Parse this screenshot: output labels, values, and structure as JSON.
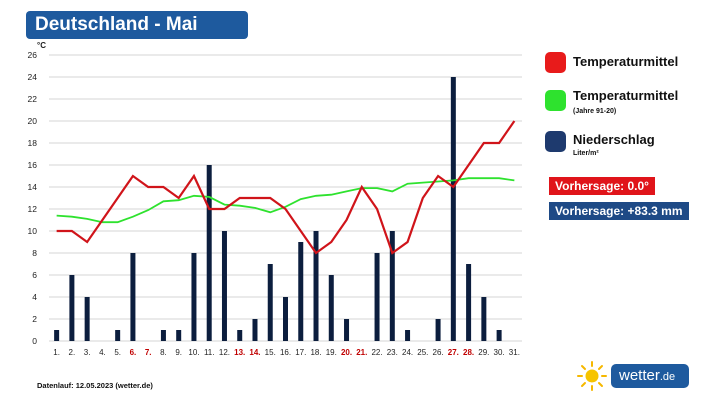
{
  "title": "Deutschland - Mai",
  "chart_data": {
    "type": "bar+line",
    "yunit": "°C",
    "ylim": [
      0,
      26
    ],
    "yticks": [
      0,
      2,
      4,
      6,
      8,
      10,
      12,
      14,
      16,
      18,
      20,
      22,
      24,
      26
    ],
    "categories": [
      "1.",
      "2.",
      "3.",
      "4.",
      "5.",
      "6.",
      "7.",
      "8.",
      "9.",
      "10.",
      "11.",
      "12.",
      "13.",
      "14.",
      "15.",
      "16.",
      "17.",
      "18.",
      "19.",
      "20.",
      "21.",
      "22.",
      "23.",
      "24.",
      "25.",
      "26.",
      "27.",
      "28.",
      "29.",
      "30.",
      "31."
    ],
    "weekend_days": [
      "6.",
      "7.",
      "13.",
      "14.",
      "20.",
      "21.",
      "27.",
      "28."
    ],
    "precipitation": [
      1,
      6,
      4,
      0,
      1,
      8,
      0,
      1,
      1,
      8,
      16,
      10,
      1,
      2,
      7,
      4,
      9,
      10,
      6,
      2,
      0,
      8,
      10,
      1,
      0,
      2,
      24,
      7,
      4,
      1,
      0
    ],
    "temperature": [
      10,
      10,
      9,
      11,
      13,
      15,
      14,
      14,
      13,
      15,
      12,
      12,
      13,
      13,
      13,
      12,
      10,
      8,
      9,
      11,
      14,
      12,
      8,
      9,
      13,
      15,
      14,
      16,
      18,
      18,
      20
    ],
    "temperature_mean_9120": [
      11.4,
      11.3,
      11.1,
      10.8,
      10.8,
      11.3,
      11.9,
      12.7,
      12.8,
      13.2,
      13.1,
      12.4,
      12.3,
      12.1,
      11.7,
      12.2,
      12.9,
      13.2,
      13.3,
      13.6,
      13.9,
      13.9,
      13.6,
      14.3,
      14.4,
      14.5,
      14.6,
      14.8,
      14.8,
      14.8,
      14.6
    ],
    "colors": {
      "temperature": "#d0141a",
      "temperature_mean": "#2ee22e",
      "precipitation": "#0c1e3e",
      "weekend_label": "#c00000",
      "grid": "#c8c8c8"
    }
  },
  "legend": [
    {
      "label": "Temperaturmittel",
      "sub": "",
      "color": "#e81b1b"
    },
    {
      "label": "Temperaturmittel",
      "sub": "(Jahre 91-20)",
      "color": "#2ee22e"
    },
    {
      "label": "Niederschlag",
      "sub": "Liter/m²",
      "color": "#1e3a6e"
    }
  ],
  "forecast_temp": "Vorhersage: 0.0°",
  "forecast_precip": "Vorhersage: +83.3 mm",
  "footer": "Datenlauf: 12.05.2023 (wetter.de)",
  "brand_main": "wetter",
  "brand_tld": ".de"
}
